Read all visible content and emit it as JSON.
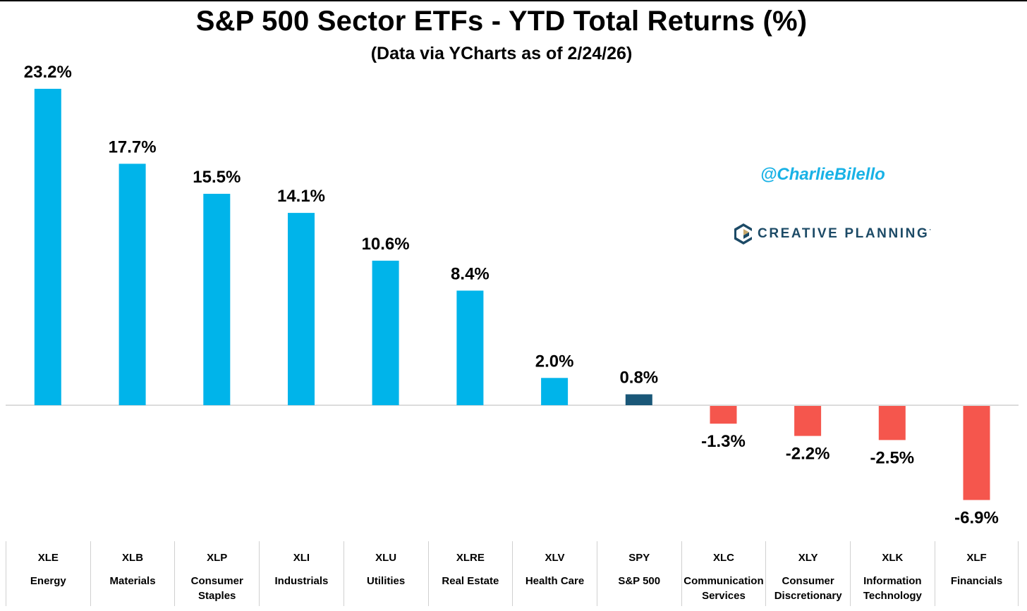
{
  "chart_data": {
    "type": "bar",
    "title": "S&P 500 Sector ETFs - YTD Total Returns (%)",
    "subtitle": "(Data via YCharts as of 2/24/26)",
    "xlabel": "",
    "ylabel": "",
    "ylim": [
      -6.9,
      23.2
    ],
    "grid": false,
    "categories": [
      "XLE",
      "XLB",
      "XLP",
      "XLI",
      "XLU",
      "XLRE",
      "XLV",
      "SPY",
      "XLC",
      "XLY",
      "XLK",
      "XLF"
    ],
    "category_names": [
      "Energy",
      "Materials",
      "Consumer Staples",
      "Industrials",
      "Utilities",
      "Real Estate",
      "Health Care",
      "S&P 500",
      "Communication Services",
      "Consumer Discretionary",
      "Information Technology",
      "Financials"
    ],
    "values": [
      23.2,
      17.7,
      15.5,
      14.1,
      10.6,
      8.4,
      2.0,
      0.8,
      -1.3,
      -2.2,
      -2.5,
      -6.9
    ],
    "data_labels": [
      "23.2%",
      "17.7%",
      "15.5%",
      "14.1%",
      "10.6%",
      "8.4%",
      "2.0%",
      "0.8%",
      "-1.3%",
      "-2.2%",
      "-2.5%",
      "-6.9%"
    ],
    "colors": {
      "positive": "#00b4ea",
      "negative": "#f5564d",
      "benchmark": "#1a5778",
      "baseline": "#d0d0d0"
    },
    "benchmark_category": "SPY"
  },
  "watermark": {
    "handle": "@CharlieBilello",
    "brand": "CREATIVE PLANNING",
    "brand_mark": "·"
  }
}
